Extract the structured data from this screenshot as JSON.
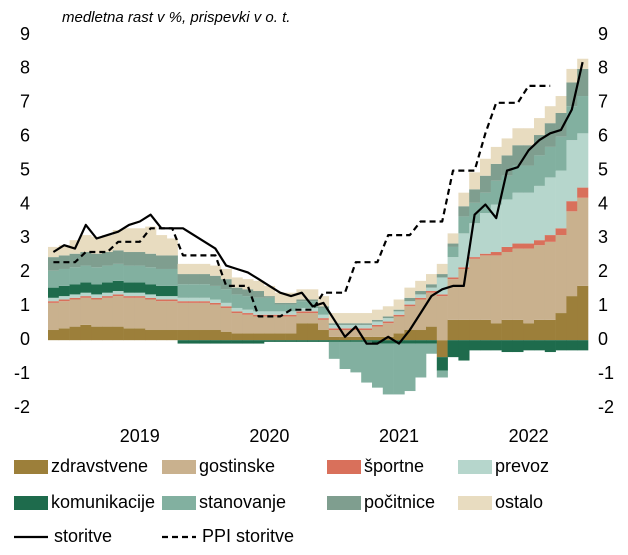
{
  "chart_data": {
    "type": "stacked-bar-line",
    "subtitle": "medletna rast v %, prispevki v o. t.",
    "categories": [
      null,
      null,
      null,
      null,
      null,
      null,
      null,
      null,
      "2019",
      null,
      null,
      null,
      null,
      null,
      null,
      null,
      null,
      null,
      null,
      null,
      "2020",
      null,
      null,
      null,
      null,
      null,
      null,
      null,
      null,
      null,
      null,
      null,
      "2021",
      null,
      null,
      null,
      null,
      null,
      null,
      null,
      null,
      null,
      null,
      null,
      "2022",
      null,
      null,
      null,
      null,
      null
    ],
    "ylim": [
      -2,
      9
    ],
    "yticks": [
      -2,
      -1,
      0,
      1,
      2,
      3,
      4,
      5,
      6,
      7,
      8,
      9
    ],
    "y2lim": [
      -2,
      9
    ],
    "y2ticks": [
      -2,
      -1,
      0,
      1,
      2,
      3,
      4,
      5,
      6,
      7,
      8,
      9
    ],
    "series": [
      {
        "name": "zdravstvene",
        "color": "#9c7f3a",
        "values": [
          0.3,
          0.35,
          0.4,
          0.45,
          0.4,
          0.4,
          0.4,
          0.35,
          0.35,
          0.3,
          0.3,
          0.3,
          0.3,
          0.3,
          0.3,
          0.3,
          0.25,
          0.2,
          0.2,
          0.2,
          0.2,
          0.2,
          0.2,
          0.5,
          0.5,
          0.3,
          0.1,
          0.1,
          0.1,
          0.1,
          0.1,
          0.1,
          0.2,
          0.3,
          0.3,
          0.4,
          -0.5,
          0.6,
          0.6,
          0.6,
          0.6,
          0.5,
          0.6,
          0.6,
          0.5,
          0.6,
          0.6,
          0.8,
          1.3,
          1.6
        ]
      },
      {
        "name": "gostinske",
        "color": "#c9b18e",
        "values": [
          0.8,
          0.8,
          0.8,
          0.8,
          0.8,
          0.85,
          0.9,
          0.9,
          0.9,
          0.9,
          0.85,
          0.85,
          0.8,
          0.8,
          0.8,
          0.75,
          0.7,
          0.6,
          0.55,
          0.5,
          0.5,
          0.5,
          0.5,
          0.3,
          0.3,
          0.3,
          0.2,
          0.2,
          0.2,
          0.2,
          0.3,
          0.4,
          0.5,
          0.7,
          0.9,
          1.0,
          1.3,
          1.2,
          1.5,
          1.8,
          1.9,
          2.0,
          2.0,
          2.1,
          2.2,
          2.2,
          2.3,
          2.3,
          2.5,
          2.6
        ]
      },
      {
        "name": "športne",
        "color": "#d9705b",
        "values": [
          0.05,
          0.05,
          0.05,
          0.05,
          0.05,
          0.05,
          0.05,
          0.05,
          0.05,
          0.05,
          0.05,
          0.05,
          0.05,
          0.05,
          0.05,
          0.05,
          0.05,
          0.05,
          0.05,
          0.05,
          0.05,
          0.05,
          0.05,
          0.05,
          0.05,
          0.05,
          0.05,
          0.05,
          0.05,
          0.05,
          0.05,
          0.05,
          0.05,
          0.05,
          0.05,
          0.05,
          0.05,
          0.05,
          0.05,
          0.05,
          0.05,
          0.1,
          0.15,
          0.15,
          0.15,
          0.15,
          0.2,
          0.2,
          0.3,
          0.3
        ]
      },
      {
        "name": "prevoz",
        "color": "#b6d6cc",
        "values": [
          0.1,
          0.1,
          0.1,
          0.1,
          0.1,
          0.1,
          0.1,
          0.1,
          0.1,
          0.1,
          0.1,
          0.1,
          0.1,
          0.1,
          0.1,
          0.1,
          0.1,
          0.1,
          0.1,
          0.1,
          0.1,
          0.1,
          0.1,
          0.1,
          0.1,
          0.1,
          0.1,
          0.1,
          0.1,
          0.1,
          0.1,
          0.1,
          0.1,
          0.1,
          0.1,
          0.1,
          0.5,
          0.6,
          1.0,
          1.0,
          1.2,
          1.4,
          1.4,
          1.5,
          1.5,
          1.6,
          1.7,
          1.7,
          1.8,
          1.6
        ]
      },
      {
        "name": "komunikacije",
        "color": "#1e6b4c",
        "values": [
          0.3,
          0.3,
          0.3,
          0.3,
          0.3,
          0.3,
          0.3,
          0.3,
          0.3,
          0.3,
          0.3,
          0.3,
          -0.1,
          -0.1,
          -0.1,
          -0.1,
          -0.1,
          -0.1,
          -0.1,
          -0.1,
          -0.05,
          -0.05,
          -0.05,
          -0.05,
          -0.05,
          -0.05,
          -0.05,
          -0.05,
          -0.05,
          -0.05,
          -0.1,
          -0.1,
          -0.1,
          -0.1,
          -0.1,
          -0.1,
          -0.4,
          -0.5,
          -0.6,
          -0.3,
          -0.3,
          -0.3,
          -0.35,
          -0.35,
          -0.3,
          -0.3,
          -0.35,
          -0.3,
          -0.3,
          -0.3
        ]
      },
      {
        "name": "stanovanje",
        "color": "#82b0a0",
        "values": [
          0.5,
          0.5,
          0.5,
          0.5,
          0.5,
          0.5,
          0.5,
          0.5,
          0.5,
          0.5,
          0.5,
          0.5,
          0.4,
          0.4,
          0.4,
          0.4,
          0.4,
          0.4,
          0.4,
          0.4,
          0.4,
          0.2,
          0.2,
          0.2,
          0.2,
          0.2,
          -0.5,
          -0.8,
          -0.9,
          -1.2,
          -1.3,
          -1.5,
          -1.5,
          -1.4,
          -1.0,
          -0.3,
          -0.2,
          0.3,
          0.5,
          0.6,
          0.6,
          0.7,
          0.7,
          0.8,
          0.8,
          0.9,
          0.9,
          1.0,
          1.0,
          1.1
        ]
      },
      {
        "name": "počitnice",
        "color": "#7f9e8f",
        "values": [
          0.4,
          0.4,
          0.4,
          0.4,
          0.4,
          0.4,
          0.4,
          0.4,
          0.4,
          0.4,
          0.4,
          0.4,
          0.3,
          0.3,
          0.3,
          0.3,
          0.3,
          0.2,
          0.2,
          0.2,
          0.05,
          0.05,
          0.05,
          0.05,
          0.05,
          0.05,
          0.05,
          0.05,
          0.05,
          0.05,
          0.05,
          0.05,
          0.05,
          0.1,
          0.1,
          0.1,
          0.1,
          0.1,
          0.3,
          0.4,
          0.5,
          0.5,
          0.6,
          0.6,
          0.6,
          0.6,
          0.7,
          0.7,
          0.7,
          0.8
        ]
      },
      {
        "name": "ostalo",
        "color": "#e8dcc0",
        "values": [
          0.3,
          0.3,
          0.4,
          0.5,
          0.5,
          0.5,
          0.6,
          0.7,
          0.7,
          0.8,
          0.6,
          0.5,
          0.3,
          0.3,
          0.3,
          0.3,
          0.3,
          0.3,
          0.3,
          0.3,
          0.3,
          0.3,
          0.3,
          0.3,
          0.3,
          0.3,
          0.3,
          0.3,
          0.3,
          0.3,
          0.3,
          0.3,
          0.3,
          0.3,
          0.3,
          0.3,
          0.3,
          0.3,
          0.4,
          0.5,
          0.5,
          0.5,
          0.5,
          0.5,
          0.5,
          0.5,
          0.5,
          0.5,
          0.4,
          0.3
        ]
      }
    ],
    "lines": [
      {
        "name": "storitve",
        "color": "#000000",
        "dashed": false,
        "values": [
          2.6,
          2.8,
          2.7,
          3.4,
          3.0,
          3.1,
          3.2,
          3.4,
          3.5,
          3.7,
          3.3,
          3.3,
          3.3,
          3.1,
          2.9,
          2.7,
          2.2,
          2.1,
          2.0,
          1.8,
          1.6,
          1.4,
          1.3,
          1.4,
          1.0,
          1.1,
          0.6,
          0.1,
          0.4,
          -0.1,
          -0.1,
          0.1,
          -0.1,
          0.3,
          0.8,
          1.3,
          1.5,
          1.6,
          1.6,
          3.7,
          4.0,
          3.6,
          5.0,
          5.1,
          5.6,
          5.9,
          6.1,
          6.2,
          6.8,
          8.2
        ]
      },
      {
        "name": "PPI storitve",
        "color": "#000000",
        "dashed": true,
        "values": [
          2.3,
          2.3,
          2.3,
          2.6,
          2.6,
          2.6,
          2.9,
          2.9,
          2.9,
          3.3,
          3.3,
          3.3,
          2.5,
          2.5,
          2.5,
          2.5,
          1.6,
          1.6,
          1.6,
          0.7,
          0.7,
          0.7,
          0.9,
          0.9,
          0.9,
          1.4,
          1.4,
          1.4,
          2.3,
          2.3,
          2.3,
          3.1,
          3.1,
          3.1,
          3.5,
          3.5,
          3.5,
          5.0,
          5.0,
          5.0,
          6.1,
          7.0,
          7.0,
          7.0,
          7.5,
          7.5,
          7.5,
          null,
          null,
          null
        ]
      }
    ]
  }
}
